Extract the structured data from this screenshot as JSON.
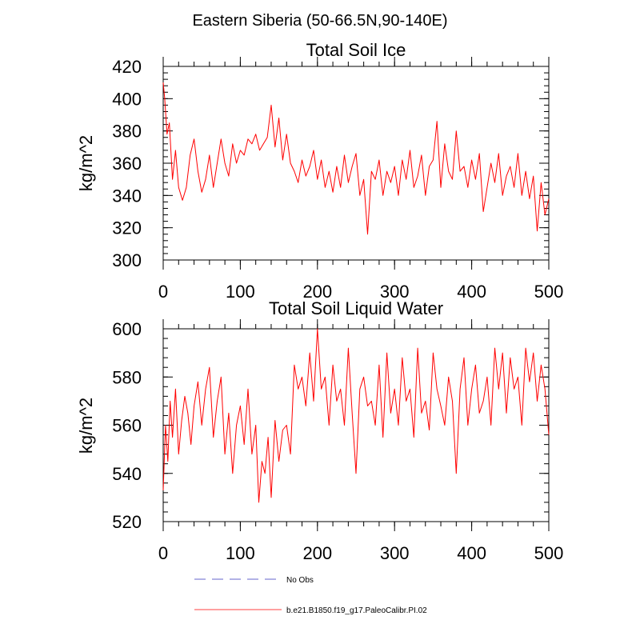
{
  "figure_title": "Eastern Siberia (50-66.5N,90-140E)",
  "chart_data": [
    {
      "type": "line",
      "title": "Total Soil Ice",
      "xlabel": "",
      "ylabel": "kg/m^2",
      "xlim": [
        0,
        500
      ],
      "ylim": [
        300,
        420
      ],
      "x_ticks": [
        0,
        100,
        200,
        300,
        400,
        500
      ],
      "y_ticks": [
        300,
        320,
        340,
        360,
        380,
        400,
        420
      ],
      "grid": false,
      "series": [
        {
          "name": "b.e21.B1850.f19_g17.PaleoCalibr.PI.02",
          "color": "#ff0000",
          "x": [
            0,
            2,
            5,
            8,
            12,
            16,
            20,
            25,
            30,
            35,
            40,
            45,
            50,
            55,
            60,
            65,
            70,
            75,
            80,
            85,
            90,
            95,
            100,
            105,
            110,
            115,
            120,
            125,
            130,
            135,
            140,
            145,
            150,
            155,
            160,
            165,
            170,
            175,
            180,
            185,
            190,
            195,
            200,
            205,
            210,
            215,
            220,
            225,
            230,
            235,
            240,
            245,
            250,
            255,
            260,
            265,
            270,
            275,
            280,
            285,
            290,
            295,
            300,
            305,
            310,
            315,
            320,
            325,
            330,
            335,
            340,
            345,
            350,
            355,
            360,
            365,
            370,
            375,
            380,
            385,
            390,
            395,
            400,
            405,
            410,
            415,
            420,
            425,
            430,
            435,
            440,
            445,
            450,
            455,
            460,
            465,
            470,
            475,
            480,
            485,
            490,
            495,
            500
          ],
          "y": [
            410,
            400,
            378,
            385,
            350,
            368,
            345,
            337,
            345,
            365,
            375,
            355,
            342,
            350,
            365,
            345,
            360,
            375,
            360,
            352,
            372,
            360,
            368,
            365,
            375,
            372,
            378,
            368,
            372,
            376,
            396,
            370,
            388,
            362,
            378,
            360,
            355,
            348,
            362,
            352,
            358,
            368,
            350,
            362,
            345,
            355,
            342,
            358,
            345,
            365,
            348,
            358,
            366,
            340,
            350,
            316,
            355,
            350,
            362,
            340,
            355,
            348,
            358,
            340,
            362,
            350,
            368,
            345,
            352,
            365,
            340,
            358,
            362,
            386,
            345,
            372,
            355,
            350,
            380,
            355,
            358,
            345,
            362,
            350,
            366,
            330,
            345,
            360,
            348,
            366,
            340,
            352,
            358,
            345,
            366,
            340,
            355,
            338,
            352,
            318,
            348,
            328,
            338
          ]
        }
      ]
    },
    {
      "type": "line",
      "title": "Total Soil Liquid Water",
      "xlabel": "",
      "ylabel": "kg/m^2",
      "xlim": [
        0,
        500
      ],
      "ylim": [
        520,
        600
      ],
      "x_ticks": [
        0,
        100,
        200,
        300,
        400,
        500
      ],
      "y_ticks": [
        520,
        540,
        560,
        580,
        600
      ],
      "grid": false,
      "series": [
        {
          "name": "b.e21.B1850.f19_g17.PaleoCalibr.PI.02",
          "color": "#ff0000",
          "x": [
            0,
            3,
            6,
            9,
            12,
            16,
            20,
            24,
            28,
            32,
            36,
            40,
            45,
            50,
            55,
            60,
            65,
            70,
            75,
            80,
            85,
            90,
            95,
            100,
            105,
            110,
            115,
            120,
            124,
            128,
            132,
            136,
            140,
            145,
            150,
            155,
            160,
            165,
            170,
            175,
            180,
            185,
            190,
            195,
            200,
            205,
            210,
            215,
            220,
            225,
            230,
            235,
            240,
            245,
            250,
            255,
            260,
            265,
            270,
            275,
            280,
            285,
            290,
            295,
            300,
            305,
            310,
            315,
            320,
            325,
            330,
            335,
            340,
            345,
            350,
            355,
            360,
            365,
            370,
            375,
            380,
            385,
            390,
            395,
            400,
            405,
            410,
            415,
            420,
            425,
            430,
            435,
            440,
            445,
            450,
            455,
            460,
            465,
            470,
            475,
            480,
            485,
            490,
            495,
            500
          ],
          "y": [
            533,
            560,
            545,
            570,
            555,
            575,
            548,
            562,
            572,
            565,
            552,
            568,
            578,
            560,
            575,
            584,
            555,
            570,
            580,
            548,
            565,
            540,
            560,
            568,
            552,
            575,
            548,
            560,
            528,
            545,
            540,
            555,
            530,
            562,
            545,
            558,
            560,
            548,
            585,
            575,
            580,
            568,
            590,
            570,
            600,
            575,
            580,
            560,
            585,
            570,
            575,
            560,
            592,
            565,
            540,
            575,
            580,
            568,
            570,
            560,
            585,
            555,
            590,
            565,
            575,
            560,
            588,
            570,
            575,
            555,
            592,
            565,
            570,
            558,
            590,
            575,
            568,
            560,
            580,
            570,
            540,
            575,
            588,
            560,
            575,
            585,
            565,
            570,
            580,
            560,
            592,
            575,
            590,
            565,
            588,
            575,
            580,
            560,
            592,
            578,
            590,
            570,
            585,
            575,
            556
          ]
        }
      ]
    }
  ],
  "legend": {
    "placement": "bottom",
    "entries": [
      {
        "label": "No Obs",
        "color": "#9999dd",
        "style": "dashed"
      },
      {
        "label": "b.e21.B1850.f19_g17.PaleoCalibr.PI.02",
        "color": "#ff0000",
        "style": "solid"
      }
    ]
  }
}
